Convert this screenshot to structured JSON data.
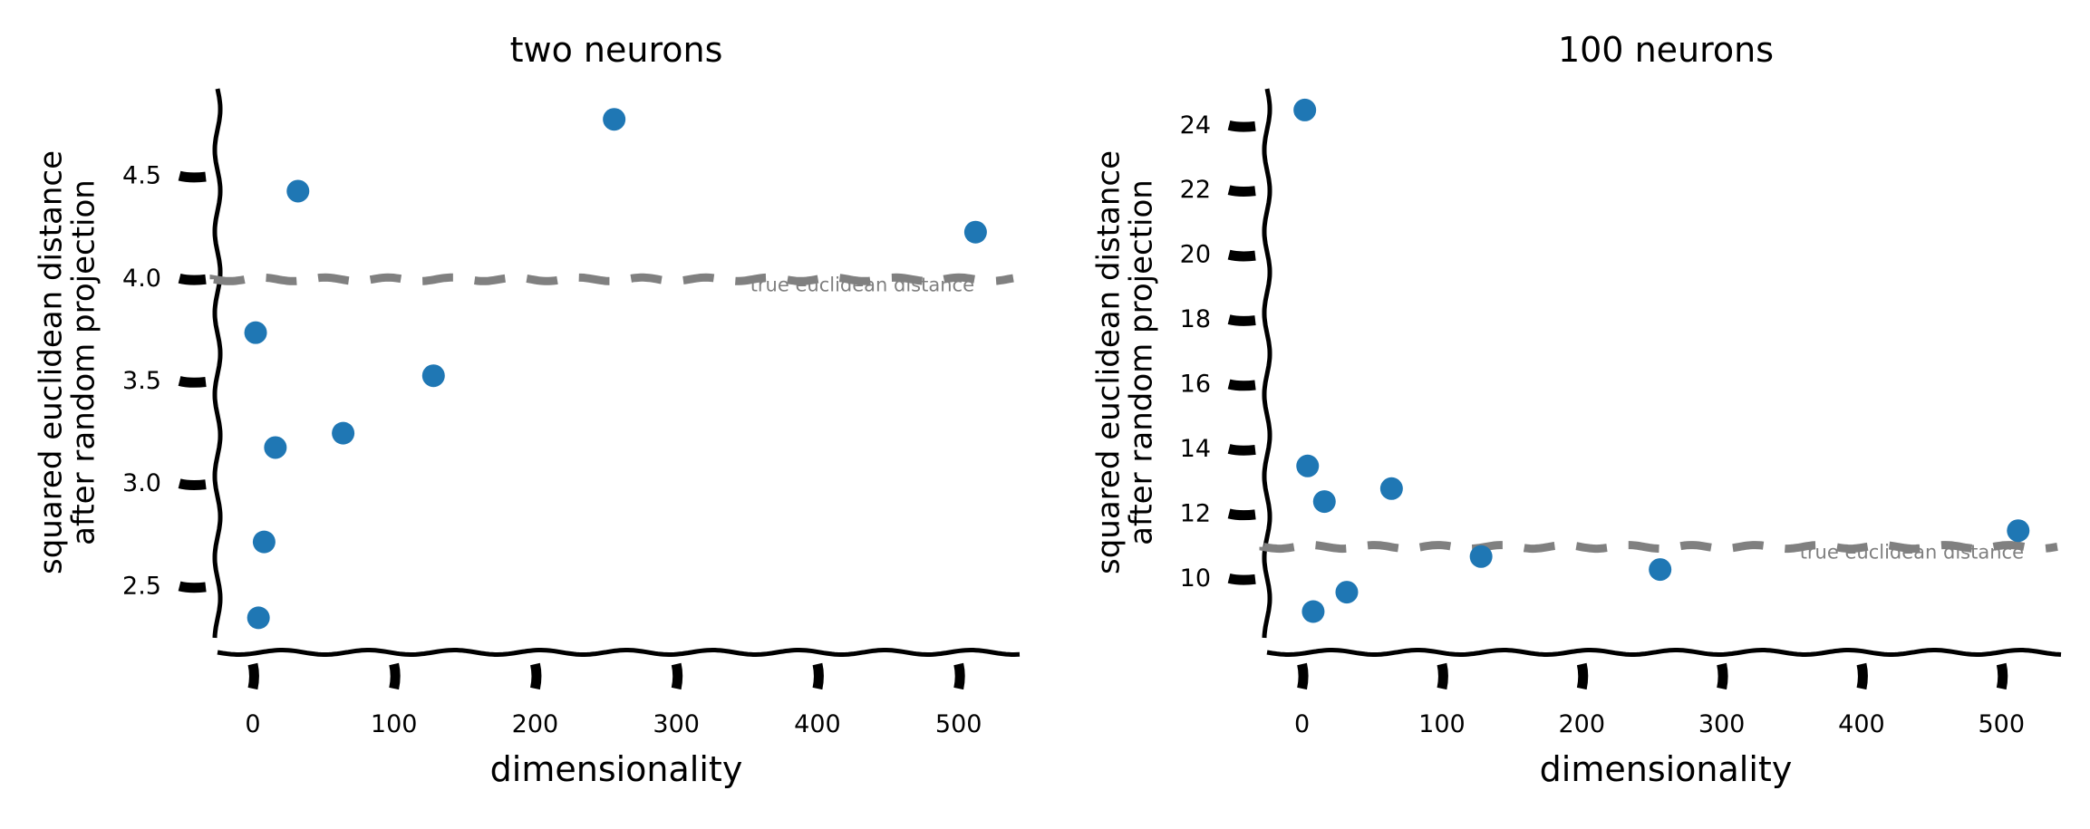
{
  "chart_data": [
    {
      "type": "scatter",
      "title": "two neurons",
      "xlabel": "dimensionality",
      "ylabel_line1": "squared euclidean distance",
      "ylabel_line2": "after random projection",
      "xlim": [
        -25,
        540
      ],
      "ylim": [
        2.27,
        4.92
      ],
      "xticks": [
        0,
        100,
        200,
        300,
        400,
        500
      ],
      "yticks": [
        2.5,
        3.0,
        3.5,
        4.0,
        4.5
      ],
      "ytick_labels": [
        "2.5",
        "3.0",
        "3.5",
        "4.0",
        "4.5"
      ],
      "points": [
        {
          "x": 2,
          "y": 3.74
        },
        {
          "x": 4,
          "y": 2.35
        },
        {
          "x": 8,
          "y": 2.72
        },
        {
          "x": 16,
          "y": 3.18
        },
        {
          "x": 32,
          "y": 4.43
        },
        {
          "x": 64,
          "y": 3.25
        },
        {
          "x": 128,
          "y": 3.53
        },
        {
          "x": 256,
          "y": 4.78
        },
        {
          "x": 512,
          "y": 4.23
        }
      ],
      "reference": {
        "y": 4.0,
        "label": "true euclidean distance"
      },
      "point_color": "#1f77b4",
      "reference_color": "#808080",
      "grid": false
    },
    {
      "type": "scatter",
      "title": "100 neurons",
      "xlabel": "dimensionality",
      "ylabel_line1": "squared euclidean distance",
      "ylabel_line2": "after random projection",
      "xlim": [
        -25,
        540
      ],
      "ylim": [
        8.3,
        25.1
      ],
      "xticks": [
        0,
        100,
        200,
        300,
        400,
        500
      ],
      "yticks": [
        10,
        12,
        14,
        16,
        18,
        20,
        22,
        24
      ],
      "ytick_labels": [
        "10",
        "12",
        "14",
        "16",
        "18",
        "20",
        "22",
        "24"
      ],
      "points": [
        {
          "x": 2,
          "y": 24.5
        },
        {
          "x": 4,
          "y": 13.5
        },
        {
          "x": 8,
          "y": 9.0
        },
        {
          "x": 16,
          "y": 12.4
        },
        {
          "x": 32,
          "y": 9.6
        },
        {
          "x": 64,
          "y": 12.8
        },
        {
          "x": 128,
          "y": 10.7
        },
        {
          "x": 256,
          "y": 10.3
        },
        {
          "x": 512,
          "y": 11.5
        }
      ],
      "reference": {
        "y": 11.0,
        "label": "true euclidean distance"
      },
      "point_color": "#1f77b4",
      "reference_color": "#808080",
      "grid": false
    }
  ]
}
